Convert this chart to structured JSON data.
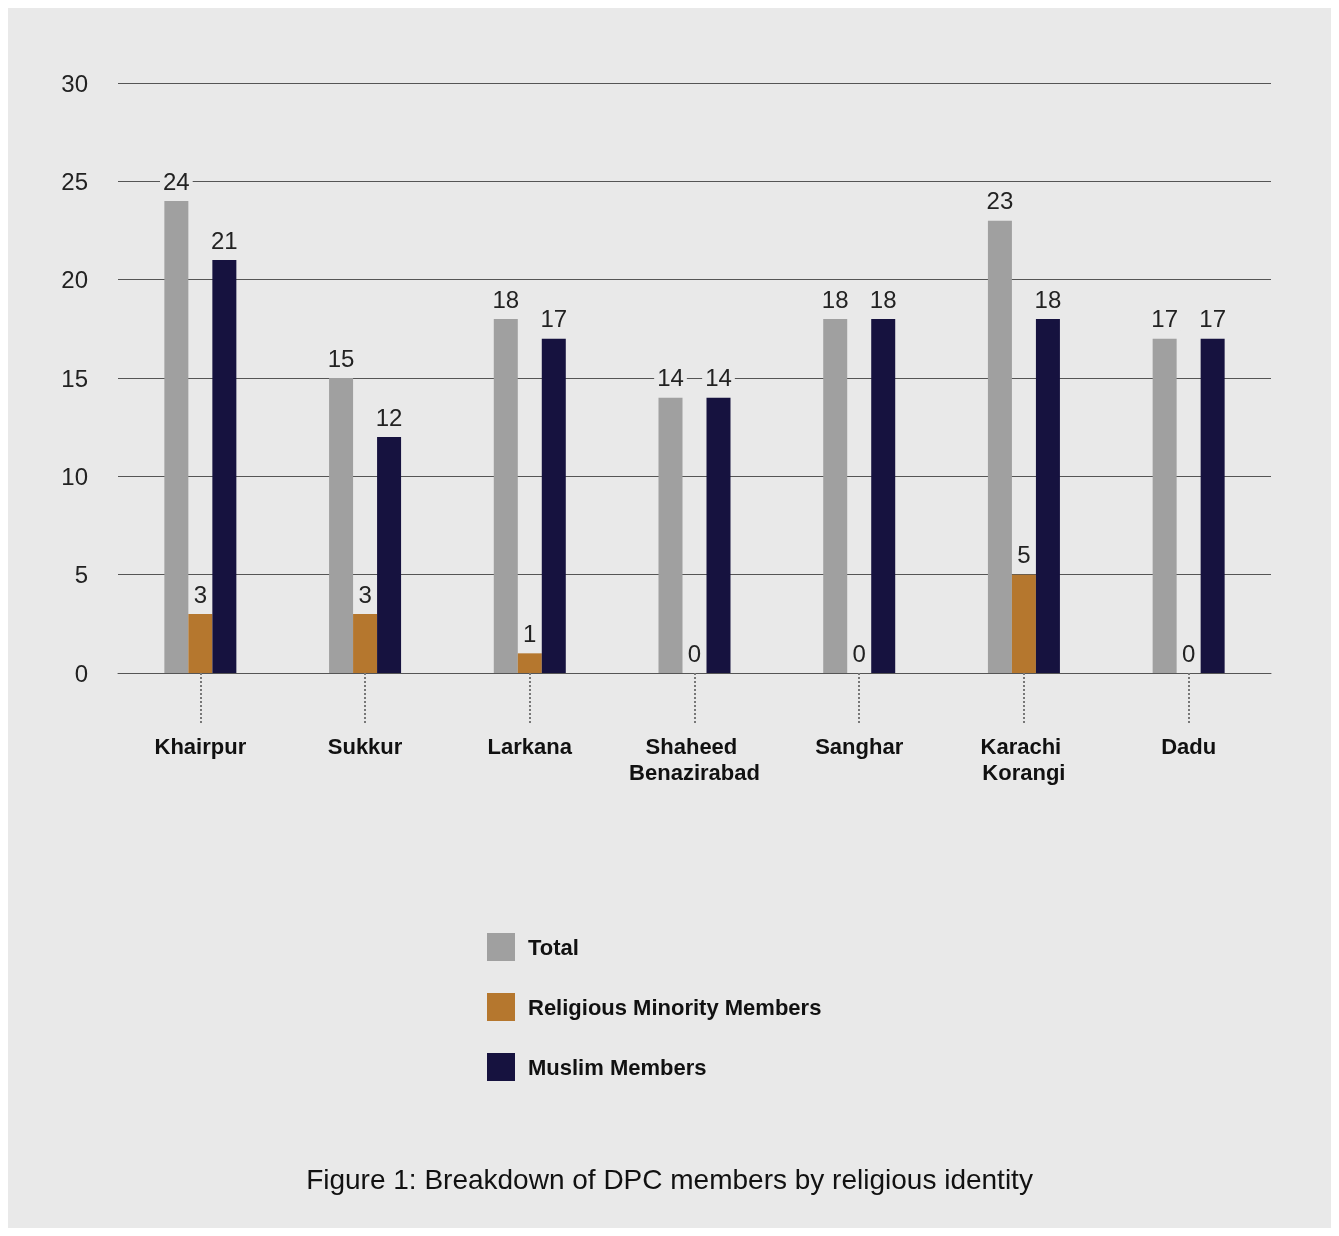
{
  "chart_data": {
    "type": "bar",
    "title": "Figure 1: Breakdown of DPC members by religious identity",
    "categories": [
      "Khairpur",
      "Sukkur",
      "Larkana",
      "Shaheed Benazirabad",
      "Sanghar",
      "Karachi Korangi",
      "Dadu"
    ],
    "series": [
      {
        "name": "Total",
        "color": "#a0a0a0",
        "values": [
          24,
          15,
          18,
          14,
          18,
          23,
          17
        ]
      },
      {
        "name": "Religious Minority Members",
        "color": "#b5772e",
        "values": [
          3,
          3,
          1,
          0,
          0,
          5,
          0
        ]
      },
      {
        "name": "Muslim Members",
        "color": "#16123f",
        "values": [
          21,
          12,
          17,
          14,
          18,
          18,
          17
        ]
      }
    ],
    "ylim": [
      0,
      30
    ],
    "yticks": [
      0,
      5,
      10,
      15,
      20,
      25,
      30
    ],
    "grid": "y",
    "legend": "bottom",
    "data_labels": true
  }
}
